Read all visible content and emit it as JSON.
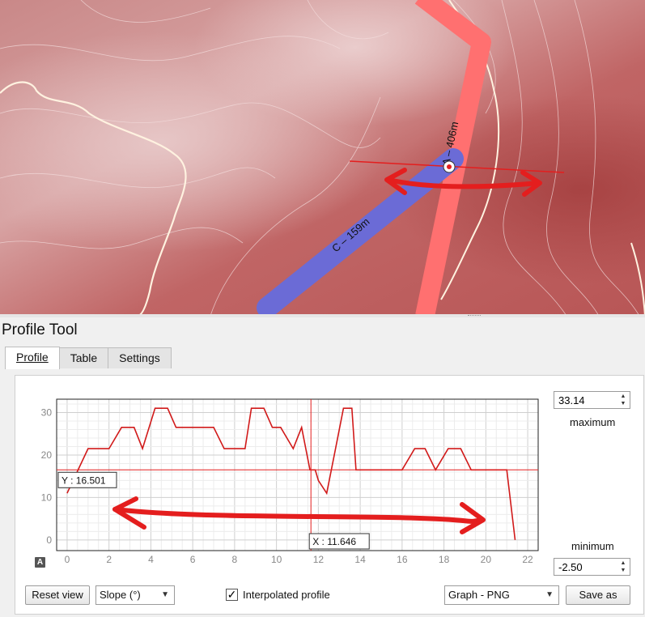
{
  "map": {
    "line_a_label": "A – 406m",
    "line_c_label": "C – 159m",
    "colors": {
      "line_a": "#ff7070",
      "line_c": "#6b6bd6",
      "annotation": "#e41e1e"
    }
  },
  "dock": {
    "title": "Profile Tool"
  },
  "tabs": [
    {
      "label": "Profile",
      "active": true
    },
    {
      "label": "Table",
      "active": false
    },
    {
      "label": "Settings",
      "active": false
    }
  ],
  "controls": {
    "maximum_value": "33.14",
    "maximum_label": "maximum",
    "minimum_value": "-2.50",
    "minimum_label": "minimum",
    "reset_view": "Reset view",
    "mode_select": "Slope (°)",
    "interpolated_label": "Interpolated profile",
    "interpolated_checked": true,
    "export_select": "Graph - PNG",
    "save_as": "Save as",
    "axis_badge": "A"
  },
  "chart_data": {
    "type": "line",
    "xlim": [
      -0.5,
      22.5
    ],
    "ylim": [
      -2.5,
      33.14
    ],
    "x_ticks": [
      "0",
      "2",
      "4",
      "6",
      "8",
      "10",
      "12",
      "14",
      "16",
      "18",
      "20",
      "22"
    ],
    "y_ticks": [
      "0",
      "10",
      "20",
      "30"
    ],
    "grid": true,
    "cursor": {
      "x": 11.646,
      "y": 16.501,
      "x_label": "X : 11.646",
      "y_label": "Y : 16.501"
    },
    "series": [
      {
        "color": "#d11a1a",
        "x": [
          0,
          1,
          2,
          2.6,
          3.2,
          3.6,
          4.2,
          4.8,
          5.2,
          5.6,
          6.2,
          7,
          7.5,
          8,
          8.5,
          8.8,
          9.4,
          9.8,
          10.2,
          10.8,
          11.2,
          11.6,
          11.85,
          12,
          12.4,
          12.8,
          13.2,
          13.6,
          13.8,
          14.2,
          15,
          16,
          16.6,
          17.1,
          17.6,
          18.2,
          18.8,
          19.3,
          19.9,
          20.5,
          21,
          21.4
        ],
        "y": [
          11,
          21.5,
          21.5,
          26.5,
          26.5,
          21.5,
          31,
          31,
          26.5,
          26.5,
          26.5,
          26.5,
          21.5,
          21.5,
          21.5,
          31,
          31,
          26.5,
          26.5,
          21.5,
          26.5,
          16.5,
          16.5,
          14,
          11,
          21,
          31,
          31,
          16.5,
          16.5,
          16.5,
          16.5,
          21.5,
          21.5,
          16.5,
          21.5,
          21.5,
          16.5,
          16.5,
          16.5,
          16.5,
          0
        ]
      }
    ]
  }
}
